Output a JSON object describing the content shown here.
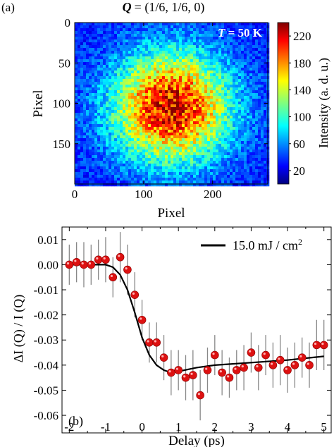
{
  "chart_data": [
    {
      "panel_label": "(a)",
      "type": "heatmap",
      "title": "= (1/6, 1/6, 0)",
      "title_symbol": "Q",
      "annotation": "T = 50 K",
      "annotation_symbol": "T",
      "annotation_rest": " = 50 K",
      "xlabel": "Pixel",
      "ylabel": "Pixel",
      "xlim": [
        0,
        280
      ],
      "ylim": [
        200,
        0
      ],
      "xticks": [
        "0",
        "100",
        "200"
      ],
      "yticks": [
        "0",
        "50",
        "100",
        "150"
      ],
      "colorbar": {
        "label": "Intensity (a. d. u.)",
        "range": [
          0,
          240
        ],
        "ticks": [
          "20",
          "60",
          "100",
          "140",
          "180",
          "220"
        ]
      },
      "peak": {
        "x_center": 140,
        "y_center": 105,
        "sigma_x": 60,
        "sigma_y": 48,
        "max_intensity": 240,
        "background": 35
      }
    },
    {
      "panel_label": "(b)",
      "type": "scatter",
      "xlabel": "Delay (ps)",
      "ylabel": "ΔI (Q) / I (Q)",
      "xlim": [
        -2.2,
        5.2
      ],
      "ylim": [
        -0.067,
        0.015
      ],
      "xticks": [
        "-2",
        "-1",
        "0",
        "1",
        "2",
        "3",
        "4",
        "5"
      ],
      "yticks": [
        "0.01",
        "0.00",
        "-0.01",
        "-0.02",
        "-0.03",
        "-0.04",
        "-0.05",
        "-0.06"
      ],
      "legend": {
        "label": "15.0 mJ / cm",
        "superscript": "2",
        "placement": "top-right"
      },
      "series": [
        {
          "x": [
            -2.0,
            -1.8,
            -1.6,
            -1.4,
            -1.2,
            -1.0,
            -0.8,
            -0.6,
            -0.4,
            -0.2,
            0.0,
            0.2,
            0.4,
            0.6,
            0.8,
            1.0,
            1.2,
            1.4,
            1.6,
            1.8,
            2.0,
            2.2,
            2.4,
            2.6,
            2.8,
            3.0,
            3.2,
            3.4,
            3.6,
            3.8,
            4.0,
            4.2,
            4.4,
            4.6,
            4.8,
            5.0
          ],
          "y": [
            0.0,
            0.001,
            0.0,
            0.0,
            0.002,
            0.002,
            -0.005,
            0.003,
            -0.002,
            -0.012,
            -0.022,
            -0.031,
            -0.031,
            -0.037,
            -0.043,
            -0.042,
            -0.045,
            -0.044,
            -0.052,
            -0.042,
            -0.036,
            -0.043,
            -0.045,
            -0.042,
            -0.041,
            -0.035,
            -0.041,
            -0.036,
            -0.04,
            -0.038,
            -0.042,
            -0.04,
            -0.037,
            -0.04,
            -0.032,
            -0.032
          ],
          "yerr": [
            0.008,
            0.008,
            0.009,
            0.008,
            0.008,
            0.009,
            0.008,
            0.01,
            0.01,
            0.009,
            0.008,
            0.008,
            0.008,
            0.009,
            0.009,
            0.008,
            0.009,
            0.01,
            0.01,
            0.009,
            0.008,
            0.009,
            0.008,
            0.008,
            0.009,
            0.008,
            0.009,
            0.008,
            0.009,
            0.01,
            0.009,
            0.009,
            0.008,
            0.009,
            0.01,
            0.01
          ],
          "marker_color": "#dd1111"
        }
      ],
      "fit": {
        "x": [
          -2.0,
          -1.5,
          -1.0,
          -0.8,
          -0.6,
          -0.4,
          -0.2,
          0.0,
          0.2,
          0.4,
          0.6,
          0.8,
          1.0,
          1.5,
          2.0,
          3.0,
          4.0,
          5.0
        ],
        "y": [
          0.0,
          0.0,
          0.0,
          -0.001,
          -0.004,
          -0.01,
          -0.019,
          -0.029,
          -0.036,
          -0.04,
          -0.042,
          -0.043,
          -0.0425,
          -0.041,
          -0.04,
          -0.039,
          -0.038,
          -0.0365
        ],
        "color": "#000000"
      }
    }
  ]
}
